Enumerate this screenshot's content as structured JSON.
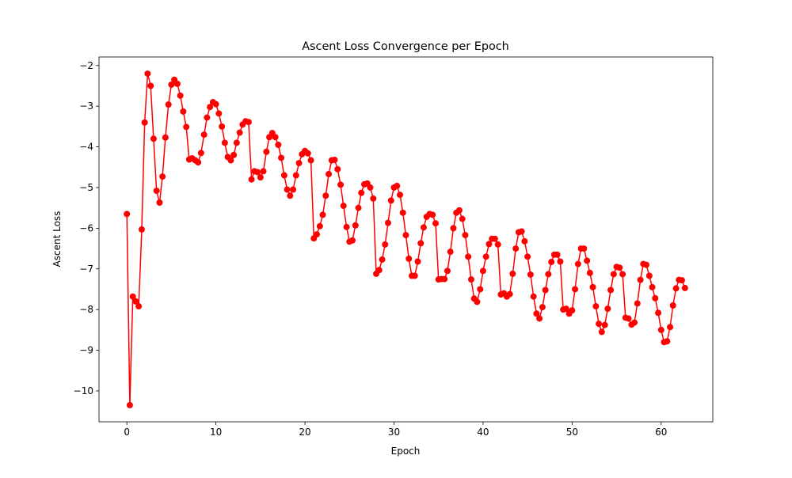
{
  "chart_data": {
    "type": "line",
    "title": "Ascent Loss Convergence per Epoch",
    "x_label": "Epoch",
    "y_label": "Ascent Loss",
    "x": [
      0,
      0.33,
      0.67,
      1,
      1.33,
      1.67,
      2,
      2.33,
      2.67,
      3,
      3.33,
      3.67,
      4,
      4.33,
      4.67,
      5,
      5.33,
      5.67,
      6,
      6.33,
      6.67,
      7,
      7.33,
      7.67,
      8,
      8.33,
      8.67,
      9,
      9.33,
      9.67,
      10,
      10.33,
      10.67,
      11,
      11.33,
      11.67,
      12,
      12.33,
      12.67,
      13,
      13.33,
      13.67,
      14,
      14.33,
      14.67,
      15,
      15.33,
      15.67,
      16,
      16.33,
      16.67,
      17,
      17.33,
      17.67,
      18,
      18.33,
      18.67,
      19,
      19.33,
      19.67,
      20,
      20.33,
      20.67,
      21,
      21.33,
      21.67,
      22,
      22.33,
      22.67,
      23,
      23.33,
      23.67,
      24,
      24.33,
      24.67,
      25,
      25.33,
      25.67,
      26,
      26.33,
      26.67,
      27,
      27.33,
      27.67,
      28,
      28.33,
      28.67,
      29,
      29.33,
      29.67,
      30,
      30.33,
      30.67,
      31,
      31.33,
      31.67,
      32,
      32.33,
      32.67,
      33,
      33.33,
      33.67,
      34,
      34.33,
      34.67,
      35,
      35.33,
      35.67,
      36,
      36.33,
      36.67,
      37,
      37.33,
      37.67,
      38,
      38.33,
      38.67,
      39,
      39.33,
      39.67,
      40,
      40.33,
      40.67,
      41,
      41.33,
      41.67,
      42,
      42.33,
      42.67,
      43,
      43.33,
      43.67,
      44,
      44.33,
      44.67,
      45,
      45.33,
      45.67,
      46,
      46.33,
      46.67,
      47,
      47.33,
      47.67,
      48,
      48.33,
      48.67,
      49,
      49.33,
      49.67,
      50,
      50.33,
      50.67,
      51,
      51.33,
      51.67,
      52,
      52.33,
      52.67,
      53,
      53.33,
      53.67,
      54,
      54.33,
      54.67,
      55,
      55.33,
      55.67,
      56,
      56.33,
      56.67,
      57,
      57.33,
      57.67,
      58,
      58.33,
      58.67,
      59,
      59.33,
      59.67,
      60,
      60.33,
      60.67,
      61,
      61.33,
      61.67,
      62,
      62.33,
      62.67
    ],
    "series": [
      {
        "color": "#ff0000",
        "values": [
          -5.65,
          -10.35,
          -7.68,
          -7.8,
          -7.92,
          -6.03,
          -3.4,
          -2.2,
          -2.5,
          -3.8,
          -5.08,
          -5.37,
          -4.73,
          -3.77,
          -2.96,
          -2.47,
          -2.35,
          -2.45,
          -2.74,
          -3.13,
          -3.51,
          -4.31,
          -4.28,
          -4.33,
          -4.38,
          -4.15,
          -3.7,
          -3.28,
          -3.02,
          -2.9,
          -2.95,
          -3.18,
          -3.5,
          -3.9,
          -4.25,
          -4.33,
          -4.2,
          -3.9,
          -3.65,
          -3.45,
          -3.37,
          -3.39,
          -4.8,
          -4.6,
          -4.62,
          -4.75,
          -4.6,
          -4.12,
          -3.76,
          -3.66,
          -3.76,
          -3.95,
          -4.27,
          -4.7,
          -5.05,
          -5.2,
          -5.05,
          -4.7,
          -4.4,
          -4.18,
          -4.1,
          -4.16,
          -4.33,
          -6.25,
          -6.15,
          -5.95,
          -5.67,
          -5.2,
          -4.67,
          -4.33,
          -4.32,
          -4.55,
          -4.93,
          -5.45,
          -5.97,
          -6.33,
          -6.3,
          -5.93,
          -5.5,
          -5.13,
          -4.92,
          -4.9,
          -5.0,
          -5.27,
          -7.12,
          -7.03,
          -6.77,
          -6.4,
          -5.87,
          -5.32,
          -5.0,
          -4.96,
          -5.18,
          -5.62,
          -6.17,
          -6.75,
          -7.17,
          -7.17,
          -6.82,
          -6.37,
          -5.98,
          -5.72,
          -5.65,
          -5.67,
          -5.88,
          -7.26,
          -7.25,
          -7.25,
          -7.05,
          -6.58,
          -6.0,
          -5.62,
          -5.56,
          -5.77,
          -6.17,
          -6.7,
          -7.26,
          -7.73,
          -7.81,
          -7.5,
          -7.05,
          -6.7,
          -6.39,
          -6.26,
          -6.26,
          -6.4,
          -7.63,
          -7.6,
          -7.68,
          -7.62,
          -7.12,
          -6.5,
          -6.1,
          -6.08,
          -6.32,
          -6.7,
          -7.14,
          -7.68,
          -8.1,
          -8.22,
          -7.94,
          -7.52,
          -7.13,
          -6.83,
          -6.65,
          -6.65,
          -6.82,
          -8.0,
          -7.98,
          -8.1,
          -8.02,
          -7.5,
          -6.88,
          -6.5,
          -6.5,
          -6.8,
          -7.1,
          -7.45,
          -7.92,
          -8.35,
          -8.55,
          -8.38,
          -7.98,
          -7.52,
          -7.13,
          -6.95,
          -6.97,
          -7.13,
          -8.2,
          -8.22,
          -8.37,
          -8.32,
          -7.85,
          -7.27,
          -6.88,
          -6.9,
          -7.17,
          -7.45,
          -7.72,
          -8.08,
          -8.5,
          -8.8,
          -8.78,
          -8.43,
          -7.9,
          -7.48,
          -7.27,
          -7.28,
          -7.47
        ]
      }
    ],
    "xlim": [
      -3.13,
      65.8
    ],
    "ylim": [
      -10.76,
      -1.79
    ],
    "xticks": [
      0,
      10,
      20,
      30,
      40,
      50,
      60
    ],
    "yticks": [
      {
        "value": -10,
        "label": "−10"
      },
      {
        "value": -9,
        "label": "−9"
      },
      {
        "value": -8,
        "label": "−8"
      },
      {
        "value": -7,
        "label": "−7"
      },
      {
        "value": -6,
        "label": "−6"
      },
      {
        "value": -5,
        "label": "−5"
      },
      {
        "value": -4,
        "label": "−4"
      },
      {
        "value": -3,
        "label": "−3"
      },
      {
        "value": -2,
        "label": "−2"
      }
    ]
  }
}
